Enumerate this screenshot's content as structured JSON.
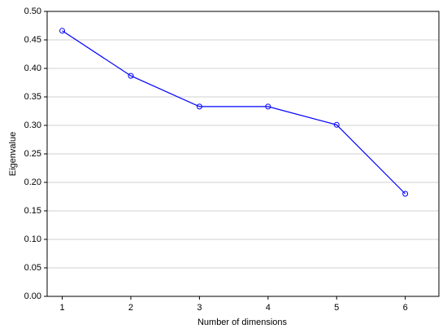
{
  "chart_data": {
    "type": "line",
    "x_label": "Number of dimensions",
    "y_label": "Eigenvalue",
    "x": [
      1,
      2,
      3,
      4,
      5,
      6
    ],
    "values": [
      0.466,
      0.387,
      0.333,
      0.333,
      0.301,
      0.18
    ],
    "color": "#0000ff",
    "xlim": [
      0.78,
      6.49
    ],
    "xticks": [
      1,
      2,
      3,
      4,
      5,
      6
    ],
    "ylim": [
      0,
      0.5
    ],
    "yticks": [
      {
        "value": 0,
        "label": "0.00"
      },
      {
        "value": 0.05,
        "label": "0.05"
      },
      {
        "value": 0.1,
        "label": "0.10"
      },
      {
        "value": 0.15,
        "label": "0.15"
      },
      {
        "value": 0.2,
        "label": "0.20"
      },
      {
        "value": 0.25,
        "label": "0.25"
      },
      {
        "value": 0.3,
        "label": "0.30"
      },
      {
        "value": 0.35,
        "label": "0.35"
      },
      {
        "value": 0.4,
        "label": "0.40"
      },
      {
        "value": 0.45,
        "label": "0.45"
      },
      {
        "value": 0.5,
        "label": "0.50"
      }
    ],
    "grid": true
  }
}
